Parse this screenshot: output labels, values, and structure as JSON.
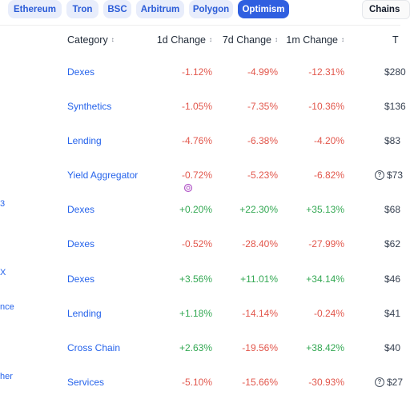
{
  "chain_tabs": [
    {
      "label": "Ethereum",
      "active": false
    },
    {
      "label": "Tron",
      "active": false
    },
    {
      "label": "BSC",
      "active": false
    },
    {
      "label": "Arbitrum",
      "active": false
    },
    {
      "label": "Polygon",
      "active": false
    },
    {
      "label": "Optimism",
      "active": true
    }
  ],
  "chains_button": "Chains",
  "table": {
    "headers": {
      "category": "Category",
      "change_1d": "1d Change",
      "change_7d": "7d Change",
      "change_1m": "1m Change",
      "tvl_fragment": "T",
      "sort_icon": "↕"
    },
    "rows": [
      {
        "name_fragment": "",
        "category": "Dexes",
        "change_1d": "-1.12%",
        "change_7d": "-4.99%",
        "change_1m": "-12.31%",
        "tvl": "$280"
      },
      {
        "name_fragment": "",
        "category": "Synthetics",
        "change_1d": "-1.05%",
        "change_7d": "-7.35%",
        "change_1m": "-10.36%",
        "tvl": "$136"
      },
      {
        "name_fragment": "",
        "category": "Lending",
        "change_1d": "-4.76%",
        "change_7d": "-6.38%",
        "change_1m": "-4.20%",
        "tvl": "$83"
      },
      {
        "name_fragment": "",
        "category": "Yield Aggregator",
        "change_1d": "-0.72%",
        "change_7d": "-5.23%",
        "change_1m": "-6.82%",
        "tvl": "$73",
        "tvl_icon": "question-icon"
      },
      {
        "name_fragment": "3",
        "category": "Dexes",
        "change_1d": "+0.20%",
        "change_7d": "+22.30%",
        "change_1m": "+35.13%",
        "tvl": "$68"
      },
      {
        "name_fragment": "",
        "category": "Dexes",
        "change_1d": "-0.52%",
        "change_7d": "-28.40%",
        "change_1m": "-27.99%",
        "tvl": "$62"
      },
      {
        "name_fragment": "X",
        "category": "Dexes",
        "change_1d": "+3.56%",
        "change_7d": "+11.01%",
        "change_1m": "+34.14%",
        "tvl": "$46"
      },
      {
        "name_fragment": "nce",
        "category": "Lending",
        "change_1d": "+1.18%",
        "change_7d": "-14.14%",
        "change_1m": "-0.24%",
        "tvl": "$41"
      },
      {
        "name_fragment": "",
        "category": "Cross Chain",
        "change_1d": "+2.63%",
        "change_7d": "-19.56%",
        "change_1m": "+38.42%",
        "tvl": "$40"
      },
      {
        "name_fragment": "her",
        "category": "Services",
        "change_1d": "-5.10%",
        "change_7d": "-15.66%",
        "change_1m": "-30.93%",
        "tvl": "$27",
        "tvl_icon": "question-icon"
      }
    ]
  },
  "colors": {
    "negative": "#e2574c",
    "positive": "#33a853",
    "link": "#2563eb",
    "active_pill": "#2f5fe0",
    "pill": "#e8edfb"
  }
}
